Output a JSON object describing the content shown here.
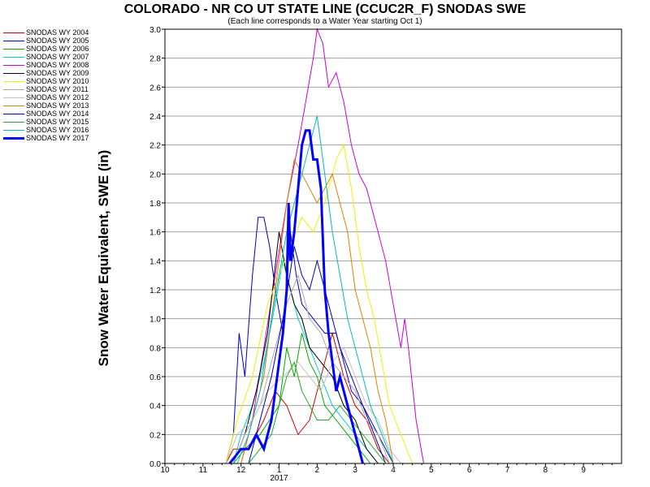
{
  "chart_data": {
    "type": "line",
    "title": "COLORADO - NR CO UT STATE LINE (CCUC2R_F) SNODAS SWE",
    "subtitle": "(Each line corresponds to a Water Year starting Oct 1)",
    "ylabel": "Snow Water Equivalent, SWE (in)",
    "xlabel": "",
    "year_label": "2017",
    "ylim": [
      0,
      3.0
    ],
    "xlim": [
      0,
      12
    ],
    "x_ticks": [
      {
        "x": 0,
        "label": "10"
      },
      {
        "x": 1,
        "label": "11"
      },
      {
        "x": 2,
        "label": "12"
      },
      {
        "x": 3,
        "label": "1"
      },
      {
        "x": 4,
        "label": "2"
      },
      {
        "x": 5,
        "label": "3"
      },
      {
        "x": 6,
        "label": "4"
      },
      {
        "x": 7,
        "label": "5"
      },
      {
        "x": 8,
        "label": "6"
      },
      {
        "x": 9,
        "label": "7"
      },
      {
        "x": 10,
        "label": "8"
      },
      {
        "x": 11,
        "label": "9"
      }
    ],
    "y_ticks": [
      "0.0",
      "0.2",
      "0.4",
      "0.6",
      "0.8",
      "1.0",
      "1.2",
      "1.4",
      "1.6",
      "1.8",
      "2.0",
      "2.2",
      "2.4",
      "2.6",
      "2.8",
      "3.0"
    ],
    "grid": "horizontal",
    "legend_position": "left",
    "series": [
      {
        "name": "SNODAS WY 2004",
        "color": "#cc0000",
        "width": 1,
        "points": [
          [
            1.6,
            0
          ],
          [
            1.8,
            0.1
          ],
          [
            2.2,
            0.1
          ],
          [
            2.6,
            0.3
          ],
          [
            2.9,
            0.5
          ],
          [
            3.2,
            0.4
          ],
          [
            3.5,
            0.2
          ],
          [
            3.8,
            0.3
          ],
          [
            4.1,
            0.6
          ],
          [
            4.4,
            0.9
          ],
          [
            4.7,
            0.6
          ],
          [
            5.0,
            0.4
          ],
          [
            5.3,
            0.3
          ],
          [
            5.6,
            0.1
          ],
          [
            5.9,
            0
          ]
        ]
      },
      {
        "name": "SNODAS WY 2005",
        "color": "#0000cc",
        "width": 1,
        "points": [
          [
            1.6,
            0
          ],
          [
            1.8,
            0.2
          ],
          [
            1.95,
            0.9
          ],
          [
            2.1,
            0.6
          ],
          [
            2.3,
            1.3
          ],
          [
            2.45,
            1.7
          ],
          [
            2.6,
            1.7
          ],
          [
            2.75,
            1.5
          ],
          [
            2.9,
            1.2
          ],
          [
            3.1,
            0.9
          ],
          [
            3.3,
            1.6
          ],
          [
            3.45,
            1.3
          ],
          [
            3.6,
            1.1
          ],
          [
            3.9,
            1.0
          ],
          [
            4.2,
            0.9
          ],
          [
            4.5,
            0.9
          ],
          [
            4.7,
            0.7
          ],
          [
            4.9,
            0.5
          ],
          [
            5.2,
            0.4
          ],
          [
            5.4,
            0.3
          ],
          [
            5.6,
            0.2
          ],
          [
            5.8,
            0.1
          ],
          [
            6.0,
            0
          ]
        ]
      },
      {
        "name": "SNODAS WY 2006",
        "color": "#00aa00",
        "width": 1,
        "points": [
          [
            1.8,
            0
          ],
          [
            2.1,
            0.1
          ],
          [
            2.5,
            0.2
          ],
          [
            3.0,
            0.4
          ],
          [
            3.2,
            0.8
          ],
          [
            3.4,
            0.6
          ],
          [
            3.6,
            0.9
          ],
          [
            3.8,
            0.7
          ],
          [
            4.0,
            0.6
          ],
          [
            4.2,
            0.4
          ],
          [
            4.5,
            0.3
          ],
          [
            4.8,
            0.2
          ],
          [
            5.1,
            0.1
          ],
          [
            5.4,
            0
          ]
        ]
      },
      {
        "name": "SNODAS WY 2007",
        "color": "#00cccc",
        "width": 1,
        "points": [
          [
            1.8,
            0
          ],
          [
            2.0,
            0.2
          ],
          [
            2.3,
            0.4
          ],
          [
            2.6,
            0.7
          ],
          [
            2.9,
            1.1
          ],
          [
            3.1,
            1.4
          ],
          [
            3.3,
            1.2
          ],
          [
            3.5,
            1.0
          ],
          [
            3.8,
            0.8
          ],
          [
            4.1,
            0.6
          ],
          [
            4.4,
            0.4
          ],
          [
            4.7,
            0.3
          ],
          [
            5.0,
            0.2
          ],
          [
            5.3,
            0.1
          ],
          [
            5.6,
            0
          ]
        ]
      },
      {
        "name": "SNODAS WY 2008",
        "color": "#cc00cc",
        "width": 1,
        "points": [
          [
            2.0,
            0
          ],
          [
            2.3,
            0.3
          ],
          [
            2.6,
            0.8
          ],
          [
            2.9,
            1.3
          ],
          [
            3.2,
            1.8
          ],
          [
            3.5,
            2.2
          ],
          [
            3.7,
            2.5
          ],
          [
            3.9,
            2.8
          ],
          [
            4.0,
            3.0
          ],
          [
            4.15,
            2.9
          ],
          [
            4.3,
            2.6
          ],
          [
            4.5,
            2.7
          ],
          [
            4.7,
            2.5
          ],
          [
            4.9,
            2.2
          ],
          [
            5.1,
            2.0
          ],
          [
            5.3,
            1.9
          ],
          [
            5.5,
            1.7
          ],
          [
            5.8,
            1.4
          ],
          [
            6.0,
            1.1
          ],
          [
            6.2,
            0.8
          ],
          [
            6.3,
            1.0
          ],
          [
            6.4,
            0.8
          ],
          [
            6.6,
            0.3
          ],
          [
            6.8,
            0
          ]
        ]
      },
      {
        "name": "SNODAS WY 2009",
        "color": "#000000",
        "width": 1,
        "points": [
          [
            1.8,
            0
          ],
          [
            2.1,
            0.2
          ],
          [
            2.4,
            0.5
          ],
          [
            2.7,
            0.9
          ],
          [
            3.0,
            1.6
          ],
          [
            3.2,
            1.3
          ],
          [
            3.4,
            1.1
          ],
          [
            3.6,
            1.0
          ],
          [
            3.8,
            0.8
          ],
          [
            4.1,
            0.7
          ],
          [
            4.4,
            0.6
          ],
          [
            4.7,
            0.4
          ],
          [
            5.0,
            0.3
          ],
          [
            5.3,
            0.1
          ],
          [
            5.6,
            0
          ]
        ]
      },
      {
        "name": "SNODAS WY 2010",
        "color": "#f0f000",
        "width": 1,
        "points": [
          [
            1.6,
            0
          ],
          [
            1.9,
            0.3
          ],
          [
            2.3,
            0.6
          ],
          [
            2.7,
            1.1
          ],
          [
            3.0,
            1.3
          ],
          [
            3.3,
            1.5
          ],
          [
            3.6,
            1.7
          ],
          [
            3.9,
            1.6
          ],
          [
            4.2,
            1.8
          ],
          [
            4.5,
            2.1
          ],
          [
            4.7,
            2.2
          ],
          [
            4.9,
            1.9
          ],
          [
            5.1,
            1.5
          ],
          [
            5.3,
            1.2
          ],
          [
            5.5,
            1.0
          ],
          [
            5.7,
            0.7
          ],
          [
            5.9,
            0.4
          ],
          [
            6.2,
            0.2
          ],
          [
            6.5,
            0
          ]
        ]
      },
      {
        "name": "SNODAS WY 2011",
        "color": "#aaaaaa",
        "width": 1,
        "points": [
          [
            1.8,
            0
          ],
          [
            2.1,
            0.2
          ],
          [
            2.5,
            0.4
          ],
          [
            2.9,
            0.8
          ],
          [
            3.2,
            1.1
          ],
          [
            3.5,
            1.3
          ],
          [
            3.8,
            1.0
          ],
          [
            4.1,
            0.9
          ],
          [
            4.4,
            0.7
          ],
          [
            4.7,
            0.6
          ],
          [
            5.0,
            0.5
          ],
          [
            5.3,
            0.3
          ],
          [
            5.6,
            0.2
          ],
          [
            5.9,
            0
          ]
        ]
      },
      {
        "name": "SNODAS WY 2012",
        "color": "#c0c0c0",
        "width": 1,
        "points": [
          [
            1.6,
            0
          ],
          [
            1.9,
            0.2
          ],
          [
            2.3,
            0.3
          ],
          [
            2.7,
            0.5
          ],
          [
            3.1,
            0.6
          ],
          [
            3.5,
            0.7
          ],
          [
            3.8,
            0.6
          ],
          [
            4.1,
            0.5
          ],
          [
            4.4,
            0.7
          ],
          [
            4.7,
            0.8
          ],
          [
            5.0,
            0.6
          ],
          [
            5.3,
            0.4
          ],
          [
            5.6,
            0.3
          ],
          [
            5.9,
            0.1
          ],
          [
            6.2,
            0
          ]
        ]
      },
      {
        "name": "SNODAS WY 2013",
        "color": "#e08000",
        "width": 1,
        "points": [
          [
            2.0,
            0
          ],
          [
            2.3,
            0.3
          ],
          [
            2.6,
            0.6
          ],
          [
            2.8,
            1.0
          ],
          [
            3.0,
            1.4
          ],
          [
            3.2,
            1.8
          ],
          [
            3.4,
            2.1
          ],
          [
            3.6,
            2.0
          ],
          [
            3.8,
            1.9
          ],
          [
            4.0,
            1.8
          ],
          [
            4.2,
            1.9
          ],
          [
            4.4,
            2.0
          ],
          [
            4.6,
            1.8
          ],
          [
            4.8,
            1.6
          ],
          [
            5.0,
            1.2
          ],
          [
            5.2,
            1.0
          ],
          [
            5.4,
            0.8
          ],
          [
            5.6,
            0.5
          ],
          [
            5.8,
            0.3
          ],
          [
            6.0,
            0
          ]
        ]
      },
      {
        "name": "SNODAS WY 2014",
        "color": "#0000aa",
        "width": 1,
        "points": [
          [
            2.2,
            0
          ],
          [
            2.5,
            0.3
          ],
          [
            2.8,
            0.6
          ],
          [
            3.1,
            1.0
          ],
          [
            3.4,
            1.5
          ],
          [
            3.6,
            1.3
          ],
          [
            3.8,
            1.2
          ],
          [
            4.0,
            1.4
          ],
          [
            4.3,
            1.1
          ],
          [
            4.6,
            0.8
          ],
          [
            4.9,
            0.6
          ],
          [
            5.2,
            0.4
          ],
          [
            5.5,
            0.2
          ],
          [
            5.8,
            0
          ]
        ]
      },
      {
        "name": "SNODAS WY 2015",
        "color": "#22aa22",
        "width": 1,
        "points": [
          [
            2.2,
            0
          ],
          [
            2.5,
            0.1
          ],
          [
            2.8,
            0.2
          ],
          [
            3.0,
            0.4
          ],
          [
            3.2,
            0.6
          ],
          [
            3.4,
            0.7
          ],
          [
            3.6,
            0.5
          ],
          [
            3.8,
            0.4
          ],
          [
            4.0,
            0.3
          ],
          [
            4.3,
            0.3
          ],
          [
            4.6,
            0.4
          ],
          [
            4.9,
            0.3
          ],
          [
            5.2,
            0.2
          ],
          [
            5.5,
            0.1
          ],
          [
            5.8,
            0
          ]
        ]
      },
      {
        "name": "SNODAS WY 2016",
        "color": "#00bbbb",
        "width": 1,
        "points": [
          [
            1.9,
            0
          ],
          [
            2.2,
            0.2
          ],
          [
            2.5,
            0.5
          ],
          [
            2.8,
            1.0
          ],
          [
            3.0,
            1.3
          ],
          [
            3.2,
            1.6
          ],
          [
            3.5,
            1.9
          ],
          [
            3.8,
            2.2
          ],
          [
            4.0,
            2.4
          ],
          [
            4.2,
            2.0
          ],
          [
            4.4,
            1.6
          ],
          [
            4.6,
            1.3
          ],
          [
            4.8,
            1.0
          ],
          [
            5.1,
            0.7
          ],
          [
            5.4,
            0.4
          ],
          [
            5.7,
            0.2
          ],
          [
            6.0,
            0
          ]
        ]
      },
      {
        "name": "SNODAS WY 2017",
        "color": "#0000ff",
        "width": 3,
        "points": [
          [
            1.7,
            0
          ],
          [
            2.0,
            0.1
          ],
          [
            2.2,
            0.1
          ],
          [
            2.4,
            0.2
          ],
          [
            2.6,
            0.1
          ],
          [
            2.8,
            0.3
          ],
          [
            2.9,
            0.5
          ],
          [
            3.0,
            0.7
          ],
          [
            3.1,
            0.9
          ],
          [
            3.2,
            1.2
          ],
          [
            3.25,
            1.8
          ],
          [
            3.3,
            1.4
          ],
          [
            3.4,
            1.6
          ],
          [
            3.5,
            1.9
          ],
          [
            3.6,
            2.2
          ],
          [
            3.7,
            2.3
          ],
          [
            3.8,
            2.3
          ],
          [
            3.85,
            2.2
          ],
          [
            3.9,
            2.1
          ],
          [
            4.0,
            2.1
          ],
          [
            4.1,
            1.9
          ],
          [
            4.2,
            1.2
          ],
          [
            4.3,
            0.9
          ],
          [
            4.4,
            0.7
          ],
          [
            4.5,
            0.5
          ],
          [
            4.6,
            0.6
          ],
          [
            4.7,
            0.5
          ],
          [
            4.8,
            0.4
          ],
          [
            4.9,
            0.3
          ],
          [
            5.0,
            0.2
          ],
          [
            5.1,
            0.1
          ],
          [
            5.2,
            0
          ]
        ]
      }
    ]
  }
}
